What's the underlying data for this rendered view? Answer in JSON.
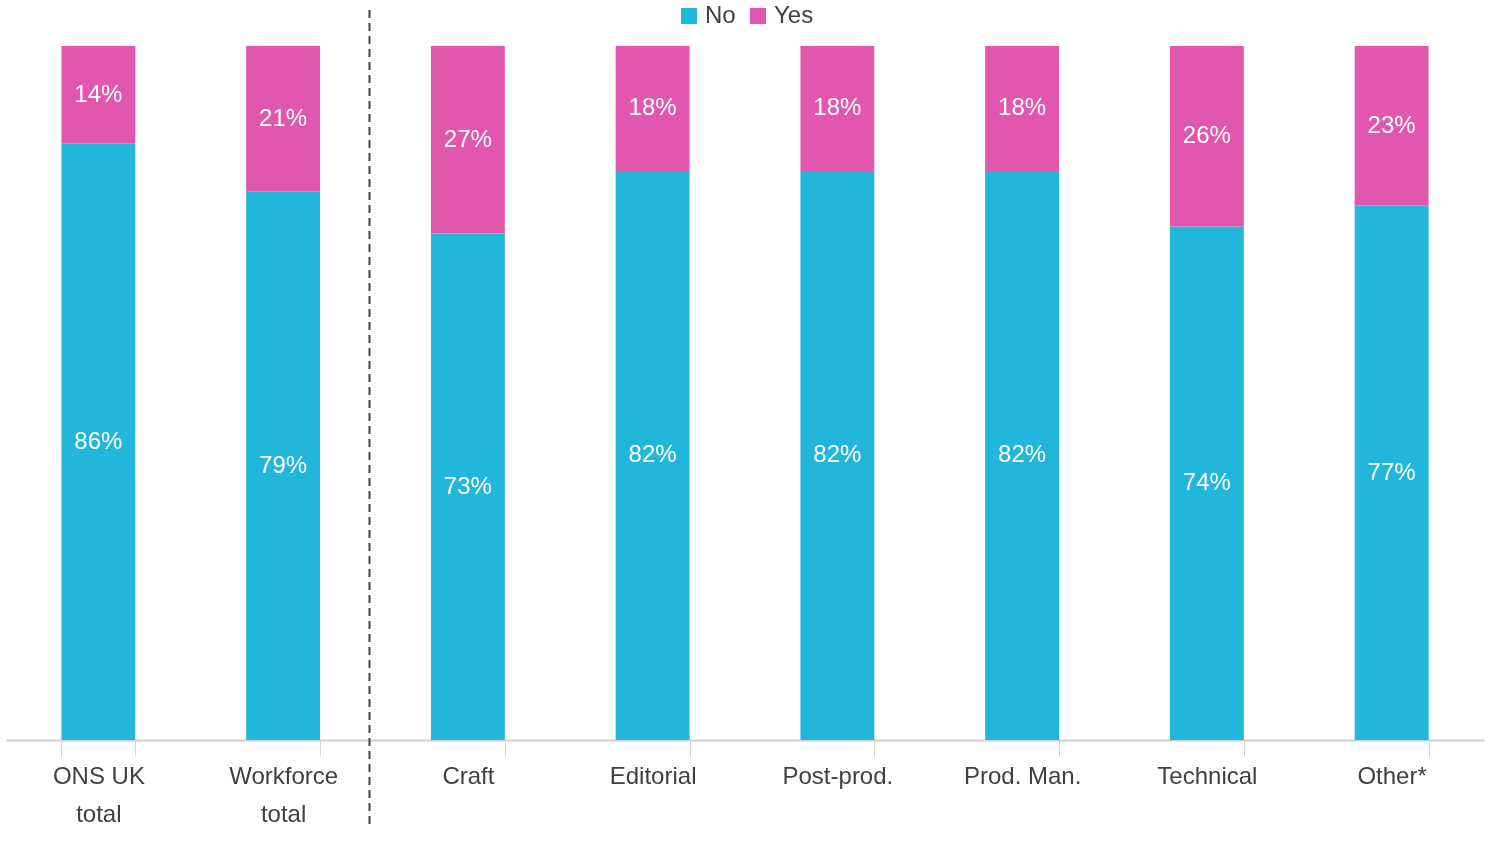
{
  "chart_data": {
    "type": "bar",
    "stacked": true,
    "legend": "top",
    "grid": false,
    "categories": [
      "ONS UK total",
      "Workforce total",
      "Craft",
      "Editorial",
      "Post-prod.",
      "Prod. Man.",
      "Technical",
      "Other*"
    ],
    "series": [
      {
        "name": "No",
        "color": "#22b6db",
        "values": [
          86,
          79,
          73,
          82,
          82,
          82,
          74,
          77
        ],
        "value_labels": [
          "86%",
          "79%",
          "73%",
          "82%",
          "82%",
          "82%",
          "74%",
          "77%"
        ]
      },
      {
        "name": "Yes",
        "color": "#e157ae",
        "values": [
          14,
          21,
          27,
          18,
          18,
          18,
          26,
          23
        ],
        "value_labels": [
          "14%",
          "21%",
          "27%",
          "18%",
          "18%",
          "18%",
          "26%",
          "23%"
        ]
      }
    ]
  }
}
